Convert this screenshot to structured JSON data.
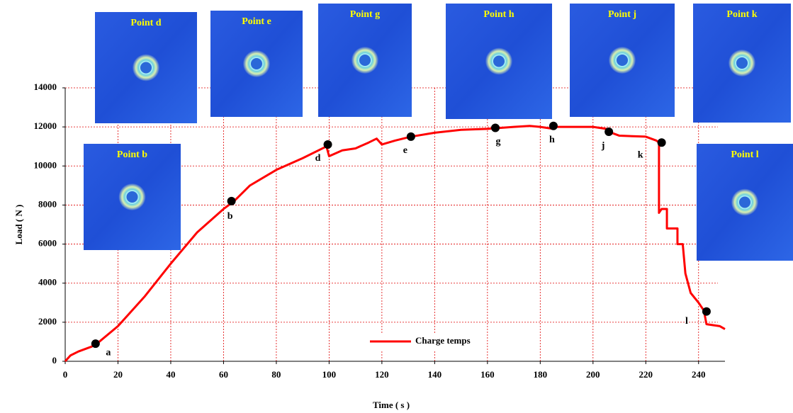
{
  "chart_data": {
    "type": "line",
    "x_label": "Time ( s )",
    "y_label": "Load ( N )",
    "xlim": [
      0,
      250
    ],
    "xticks": [
      0,
      20,
      40,
      60,
      80,
      100,
      120,
      140,
      160,
      180,
      200,
      220,
      240
    ],
    "ylim": [
      0,
      14000
    ],
    "yticks": [
      0,
      2000,
      4000,
      6000,
      8000,
      10000,
      12000,
      14000
    ],
    "grid": true,
    "x": [
      0,
      2,
      5,
      10,
      12,
      20,
      30,
      40,
      50,
      60,
      64,
      70,
      80,
      90,
      99,
      100,
      105,
      110,
      115,
      118,
      120,
      125,
      131,
      140,
      150,
      160,
      165,
      170,
      176,
      180,
      185,
      186,
      190,
      200,
      205,
      206,
      210,
      220,
      224,
      225,
      225,
      226,
      228,
      228,
      232,
      232,
      234,
      235,
      237,
      240,
      242,
      243,
      248,
      250
    ],
    "series": [
      {
        "name": "Charge temps",
        "color": "#ff0000",
        "values": [
          0,
          300,
          500,
          750,
          900,
          1800,
          3300,
          5000,
          6600,
          7800,
          8200,
          9000,
          9800,
          10400,
          11000,
          10500,
          10800,
          10900,
          11200,
          11400,
          11100,
          11300,
          11500,
          11700,
          11850,
          11900,
          11950,
          12000,
          12050,
          12000,
          11900,
          12000,
          12000,
          12000,
          11900,
          11750,
          11550,
          11500,
          11300,
          11200,
          7600,
          7800,
          7800,
          6800,
          6800,
          6000,
          6000,
          4500,
          3500,
          3000,
          2600,
          1900,
          1800,
          1650
        ]
      }
    ],
    "points": [
      {
        "label": "a",
        "x": 11.5,
        "y": 900
      },
      {
        "label": "b",
        "x": 63,
        "y": 8200
      },
      {
        "label": "d",
        "x": 99.5,
        "y": 11100
      },
      {
        "label": "e",
        "x": 131,
        "y": 11500
      },
      {
        "label": "g",
        "x": 163,
        "y": 11950
      },
      {
        "label": "h",
        "x": 185,
        "y": 12050
      },
      {
        "label": "j",
        "x": 206,
        "y": 11750
      },
      {
        "label": "k",
        "x": 226,
        "y": 11200
      },
      {
        "label": "l",
        "x": 243,
        "y": 2550
      }
    ],
    "insets": [
      {
        "title": "Point b"
      },
      {
        "title": "Point d"
      },
      {
        "title": "Point e"
      },
      {
        "title": "Point g"
      },
      {
        "title": "Point h"
      },
      {
        "title": "Point j"
      },
      {
        "title": "Point k"
      },
      {
        "title": "Point l"
      }
    ]
  }
}
